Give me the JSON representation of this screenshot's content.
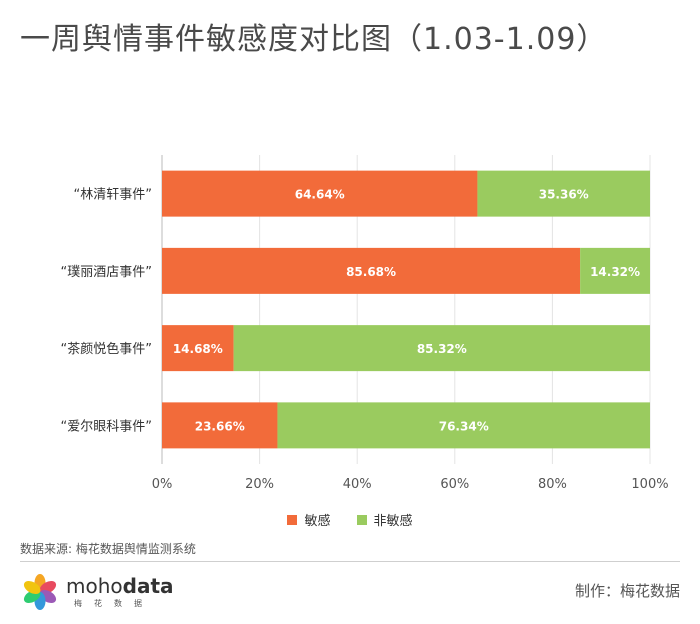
{
  "header": {
    "title": "一周舆情事件敏感度对比图（1.03-1.09）"
  },
  "colors": {
    "sensitive": "#f26b3a",
    "non_sensitive": "#9acb5f",
    "grid": "#e4e4e4",
    "axis": "#bbbbbb"
  },
  "chart_data": {
    "type": "bar",
    "orientation": "horizontal",
    "stacked": true,
    "categories": [
      "“林清轩事件”",
      "“璞丽酒店事件”",
      "“茶颜悦色事件”",
      "“爱尔眼科事件”"
    ],
    "series": [
      {
        "name": "敏感",
        "values": [
          64.64,
          85.68,
          14.68,
          23.66
        ],
        "labels": [
          "64.64%",
          "85.68%",
          "14.68%",
          "23.66%"
        ]
      },
      {
        "name": "非敏感",
        "values": [
          35.36,
          14.32,
          85.32,
          76.34
        ],
        "labels": [
          "35.36%",
          "14.32%",
          "85.32%",
          "76.34%"
        ]
      }
    ],
    "xlim": [
      0,
      100
    ],
    "xticks": [
      "0%",
      "20%",
      "40%",
      "60%",
      "80%",
      "100%"
    ],
    "grid": true,
    "legend": "bottom"
  },
  "footer": {
    "source": "数据来源: 梅花数据舆情监测系统",
    "brand_latin_light": "moho",
    "brand_latin_bold": "data",
    "brand_cn": "梅花数据",
    "credit": "制作：梅花数据"
  }
}
